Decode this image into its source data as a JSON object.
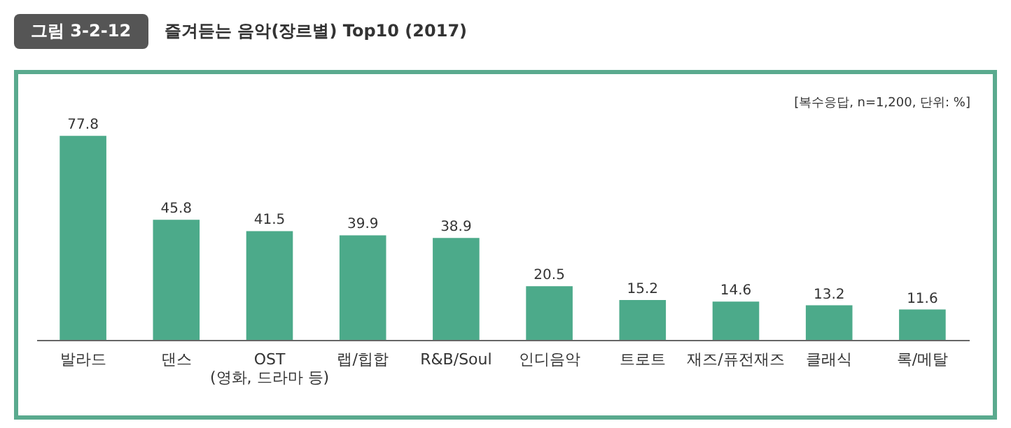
{
  "chart_data": {
    "type": "bar",
    "title": "그림 3-2-12",
    "subtitle": "즐겨듣는 음악(장르별) Top10 (2017)",
    "annotations": [
      "[복수응답, n=1,200, 단위: %]"
    ],
    "categories": [
      "발라드",
      "댄스",
      "OST\n(영화, 드라마 등)",
      "랩/힙합",
      "R&B/Soul",
      "인디음악",
      "트로트",
      "재즈/퓨전재즈",
      "클래식",
      "록/메탈"
    ],
    "values": [
      77.8,
      45.8,
      41.5,
      39.9,
      38.9,
      20.5,
      15.2,
      14.6,
      13.2,
      11.6
    ],
    "color": "#4caa8a",
    "data_labels": true,
    "grid": false
  }
}
